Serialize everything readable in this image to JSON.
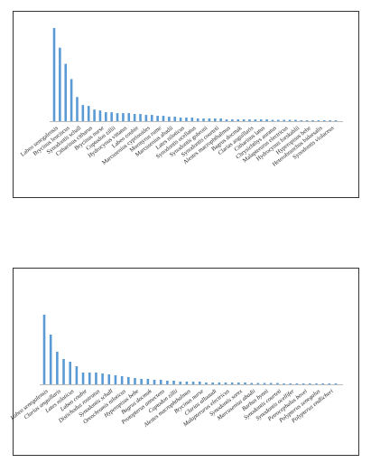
{
  "chart_data": [
    {
      "type": "bar",
      "color": "#5b9bd5",
      "ylim": [
        0,
        110
      ],
      "categories": [
        "Labeo senegalensis",
        null,
        "Brycinus leuciscus",
        null,
        "Synodontis schall",
        null,
        "Citharinus citharus",
        null,
        "Brycinus nurse",
        null,
        "Coptodon zillii",
        null,
        "Hydrocynus vittatus",
        null,
        "Labeo coubie",
        null,
        "Marcusenius cyprinoides",
        null,
        "Mormyrus rume",
        null,
        "Marcusenius abadii",
        null,
        "Lates niloticus",
        null,
        "Synodontis ocellatus",
        null,
        "Synodontis gobroni",
        null,
        "Synodontis courteti",
        null,
        "Alestes macrophthalmus",
        null,
        "Bagrus docmak",
        null,
        "Clarias anguillaris",
        null,
        "Citharinus latus",
        null,
        "Chrysichthys auratus",
        null,
        "Malapterurus electricus",
        null,
        "Hydrocynus forskahlii",
        null,
        "Hyperopisus bebe",
        null,
        "Heterobranchus bidorsalis",
        null,
        "Synodontis violaceus",
        null
      ],
      "values": [
        104,
        82,
        64,
        47,
        27,
        18,
        17,
        13,
        12,
        10,
        10,
        9,
        9,
        9,
        8,
        8,
        7,
        7,
        6,
        6,
        5,
        5,
        4,
        4,
        4,
        3,
        3,
        3,
        3,
        3,
        2,
        2,
        2,
        2,
        2,
        2,
        2,
        2,
        1.5,
        1.5,
        1.5,
        1.5,
        1.5,
        1,
        1,
        1,
        1,
        1,
        1,
        1
      ]
    },
    {
      "type": "bar",
      "color": "#5b9bd5",
      "ylim": [
        0,
        85
      ],
      "categories": [
        "Labeo senegalensis",
        null,
        "Clarias anguillaris",
        null,
        "Lates niloticus",
        null,
        "Labeo coubie",
        null,
        "Distichodus rostratus",
        null,
        "Synodontis schall",
        null,
        "Oreochromis niloticus",
        null,
        "Hyperopisus bebe",
        null,
        "Bagrus docmak",
        null,
        "Protopterus annectens",
        null,
        "Coptodon zillii",
        null,
        "Alestes macrophthalmus",
        null,
        "Brycinus nurse",
        null,
        "Clarias alluaudi",
        null,
        "Malapterurus electricus",
        null,
        "Synodontis sorex",
        null,
        "Marcusenius abadii",
        null,
        "Barbus bynni",
        null,
        "Synodontis courteti",
        null,
        "Synodontis ocellifer",
        null,
        "Petrocephalus bovei",
        null,
        "Polypterus senegalus",
        null,
        "Polypterus endlicheri",
        null
      ],
      "values": [
        77,
        55,
        36,
        28,
        25,
        20,
        13,
        13,
        13,
        12,
        11,
        10,
        9,
        8,
        7,
        6,
        6,
        5,
        5,
        4,
        4,
        3,
        3,
        3,
        3,
        2,
        2,
        2,
        2,
        2,
        2,
        2,
        1.5,
        1.5,
        1.5,
        1.5,
        1.5,
        1,
        1,
        1,
        1,
        1,
        1,
        1,
        1,
        1
      ]
    }
  ]
}
